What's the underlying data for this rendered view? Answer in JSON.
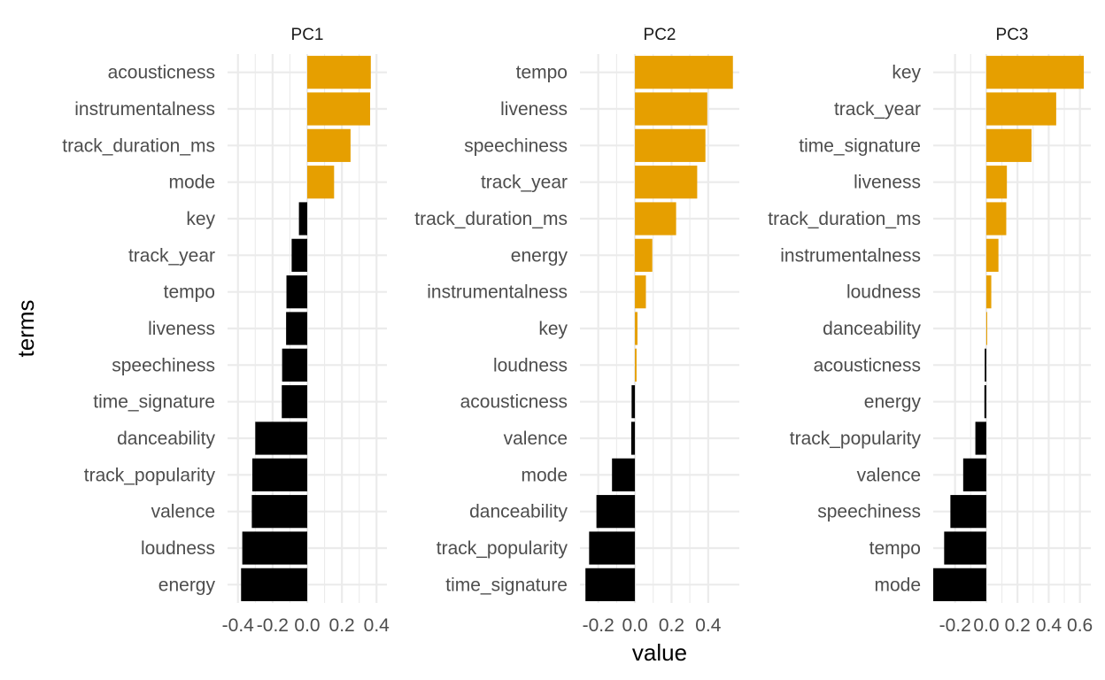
{
  "chart_data": {
    "type": "bar",
    "orientation": "horizontal",
    "xlabel": "value",
    "ylabel": "terms",
    "grid": true,
    "colors": {
      "positive": "#E69F00",
      "negative": "#000000"
    },
    "panels": [
      {
        "title": "PC1",
        "xlim": [
          -0.46,
          0.46
        ],
        "xticks": [
          -0.4,
          -0.2,
          0.0,
          0.2,
          0.4
        ],
        "xtick_labels": [
          "-0.4",
          "-0.2",
          "0.0",
          "0.2",
          "0.4"
        ],
        "categories": [
          "acousticness",
          "instrumentalness",
          "track_duration_ms",
          "mode",
          "key",
          "track_year",
          "tempo",
          "liveness",
          "speechiness",
          "time_signature",
          "danceability",
          "track_popularity",
          "valence",
          "loudness",
          "energy"
        ],
        "values": [
          0.367,
          0.363,
          0.25,
          0.155,
          -0.048,
          -0.09,
          -0.12,
          -0.122,
          -0.145,
          -0.147,
          -0.3,
          -0.317,
          -0.32,
          -0.375,
          -0.382
        ]
      },
      {
        "title": "PC2",
        "xlim": [
          -0.3,
          0.57
        ],
        "xticks": [
          -0.2,
          0.0,
          0.2,
          0.4
        ],
        "xtick_labels": [
          "-0.2",
          "0.0",
          "0.2",
          "0.4"
        ],
        "categories": [
          "tempo",
          "liveness",
          "speechiness",
          "track_year",
          "track_duration_ms",
          "energy",
          "instrumentalness",
          "key",
          "loudness",
          "acousticness",
          "valence",
          "mode",
          "danceability",
          "track_popularity",
          "time_signature"
        ],
        "values": [
          0.535,
          0.395,
          0.385,
          0.34,
          0.225,
          0.095,
          0.06,
          0.014,
          0.009,
          -0.018,
          -0.02,
          -0.125,
          -0.21,
          -0.25,
          -0.27
        ]
      },
      {
        "title": "PC3",
        "xlim": [
          -0.34,
          0.67
        ],
        "xticks": [
          -0.2,
          0.0,
          0.2,
          0.4,
          0.6
        ],
        "xtick_labels": [
          "-0.2",
          "0.0",
          "0.2",
          "0.4",
          "0.6"
        ],
        "categories": [
          "key",
          "track_year",
          "time_signature",
          "liveness",
          "track_duration_ms",
          "instrumentalness",
          "loudness",
          "danceability",
          "acousticness",
          "energy",
          "track_popularity",
          "valence",
          "speechiness",
          "tempo",
          "mode"
        ],
        "values": [
          0.625,
          0.448,
          0.29,
          0.132,
          0.128,
          0.078,
          0.032,
          0.006,
          -0.01,
          -0.012,
          -0.07,
          -0.148,
          -0.23,
          -0.27,
          -0.34
        ]
      }
    ]
  }
}
